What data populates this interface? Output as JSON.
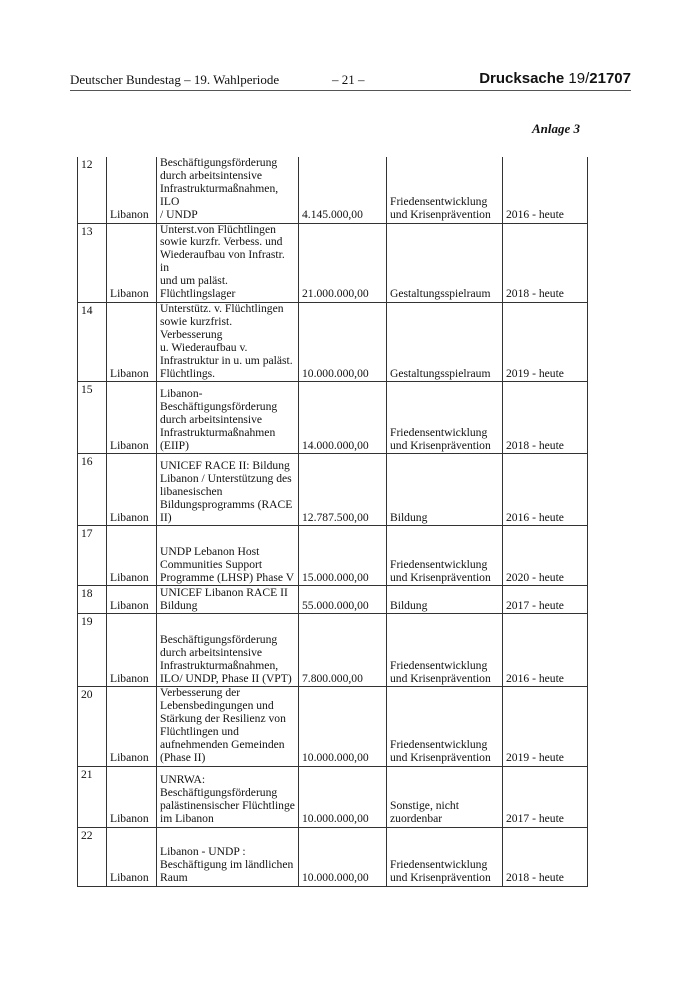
{
  "header": {
    "left": "Deutscher Bundestag – 19. Wahlperiode",
    "center": "– 21 –",
    "right_prefix": "Drucksache ",
    "right_number_a": "19/",
    "right_number_b": "21707"
  },
  "annex_label": "Anlage 3",
  "rows": [
    {
      "nr": "12",
      "country": "Libanon",
      "title": "Beschäftigungsförderung\ndurch arbeitsintensive\nInfrastrukturmaßnahmen, ILO\n/ UNDP",
      "amount": "4.145.000,00",
      "category": "Friedensentwicklung\nund Krisenprävention",
      "period": "2016 - heute"
    },
    {
      "nr": "13",
      "country": "Libanon",
      "title": "Unterst.von Flüchtlingen\nsowie kurzfr. Verbess. und\nWiederaufbau von Infrastr. in\nund um paläst.\nFlüchtlingslager",
      "amount": "21.000.000,00",
      "category": "Gestaltungsspielraum",
      "period": "2018 - heute"
    },
    {
      "nr": "14",
      "country": "Libanon",
      "title": "Unterstütz. v. Flüchtlingen\nsowie kurzfrist. Verbesserung\nu. Wiederaufbau v.\nInfrastruktur in u. um paläst.\nFlüchtlings.",
      "amount": "10.000.000,00",
      "category": "Gestaltungsspielraum",
      "period": "2019 - heute"
    },
    {
      "nr": "15",
      "country": "Libanon",
      "title": "Libanon-\nBeschäftigungsförderung\ndurch arbeitsintensive\nInfrastrukturmaßnahmen\n(EIIP)",
      "amount": "14.000.000,00",
      "category": "Friedensentwicklung\nund Krisenprävention",
      "period": "2018 - heute"
    },
    {
      "nr": "16",
      "country": "Libanon",
      "title": "UNICEF RACE II: Bildung\nLibanon / Unterstützung des\nlibanesischen\nBildungsprogramms (RACE\nII)",
      "amount": "12.787.500,00",
      "category": "Bildung",
      "period": "2016 - heute"
    },
    {
      "nr": "17",
      "country": "Libanon",
      "title": "UNDP Lebanon Host\nCommunities Support\nProgramme (LHSP) Phase V",
      "amount": "15.000.000,00",
      "category": "Friedensentwicklung\nund Krisenprävention",
      "period": "2020 - heute"
    },
    {
      "nr": "18",
      "country": "Libanon",
      "title": "UNICEF Libanon RACE II\nBildung",
      "amount": "55.000.000,00",
      "category": "Bildung",
      "period": "2017 - heute"
    },
    {
      "nr": "19",
      "country": "Libanon",
      "title": "Beschäftigungsförderung\ndurch arbeitsintensive\nInfrastrukturmaßnahmen,\nILO/ UNDP, Phase II (VPT)",
      "amount": "7.800.000,00",
      "category": "Friedensentwicklung\nund Krisenprävention",
      "period": "2016 - heute"
    },
    {
      "nr": "20",
      "country": "Libanon",
      "title": "Verbesserung der\nLebensbedingungen und\nStärkung der Resilienz von\nFlüchtlingen und\naufnehmenden Gemeinden\n(Phase II)",
      "amount": "10.000.000,00",
      "category": "Friedensentwicklung\nund Krisenprävention",
      "period": "2019 - heute"
    },
    {
      "nr": "21",
      "country": "Libanon",
      "title": "UNRWA:\nBeschäftigungsförderung\npalästinensischer Flüchtlinge\nim Libanon",
      "amount": "10.000.000,00",
      "category": "Sonstige, nicht\nzuordenbar",
      "period": "2017 - heute"
    },
    {
      "nr": "22",
      "country": "Libanon",
      "title": "Libanon - UNDP :\nBeschäftigung im ländlichen\nRaum",
      "amount": "10.000.000,00",
      "category": "Friedensentwicklung\nund Krisenprävention",
      "period": "2018 - heute"
    }
  ]
}
